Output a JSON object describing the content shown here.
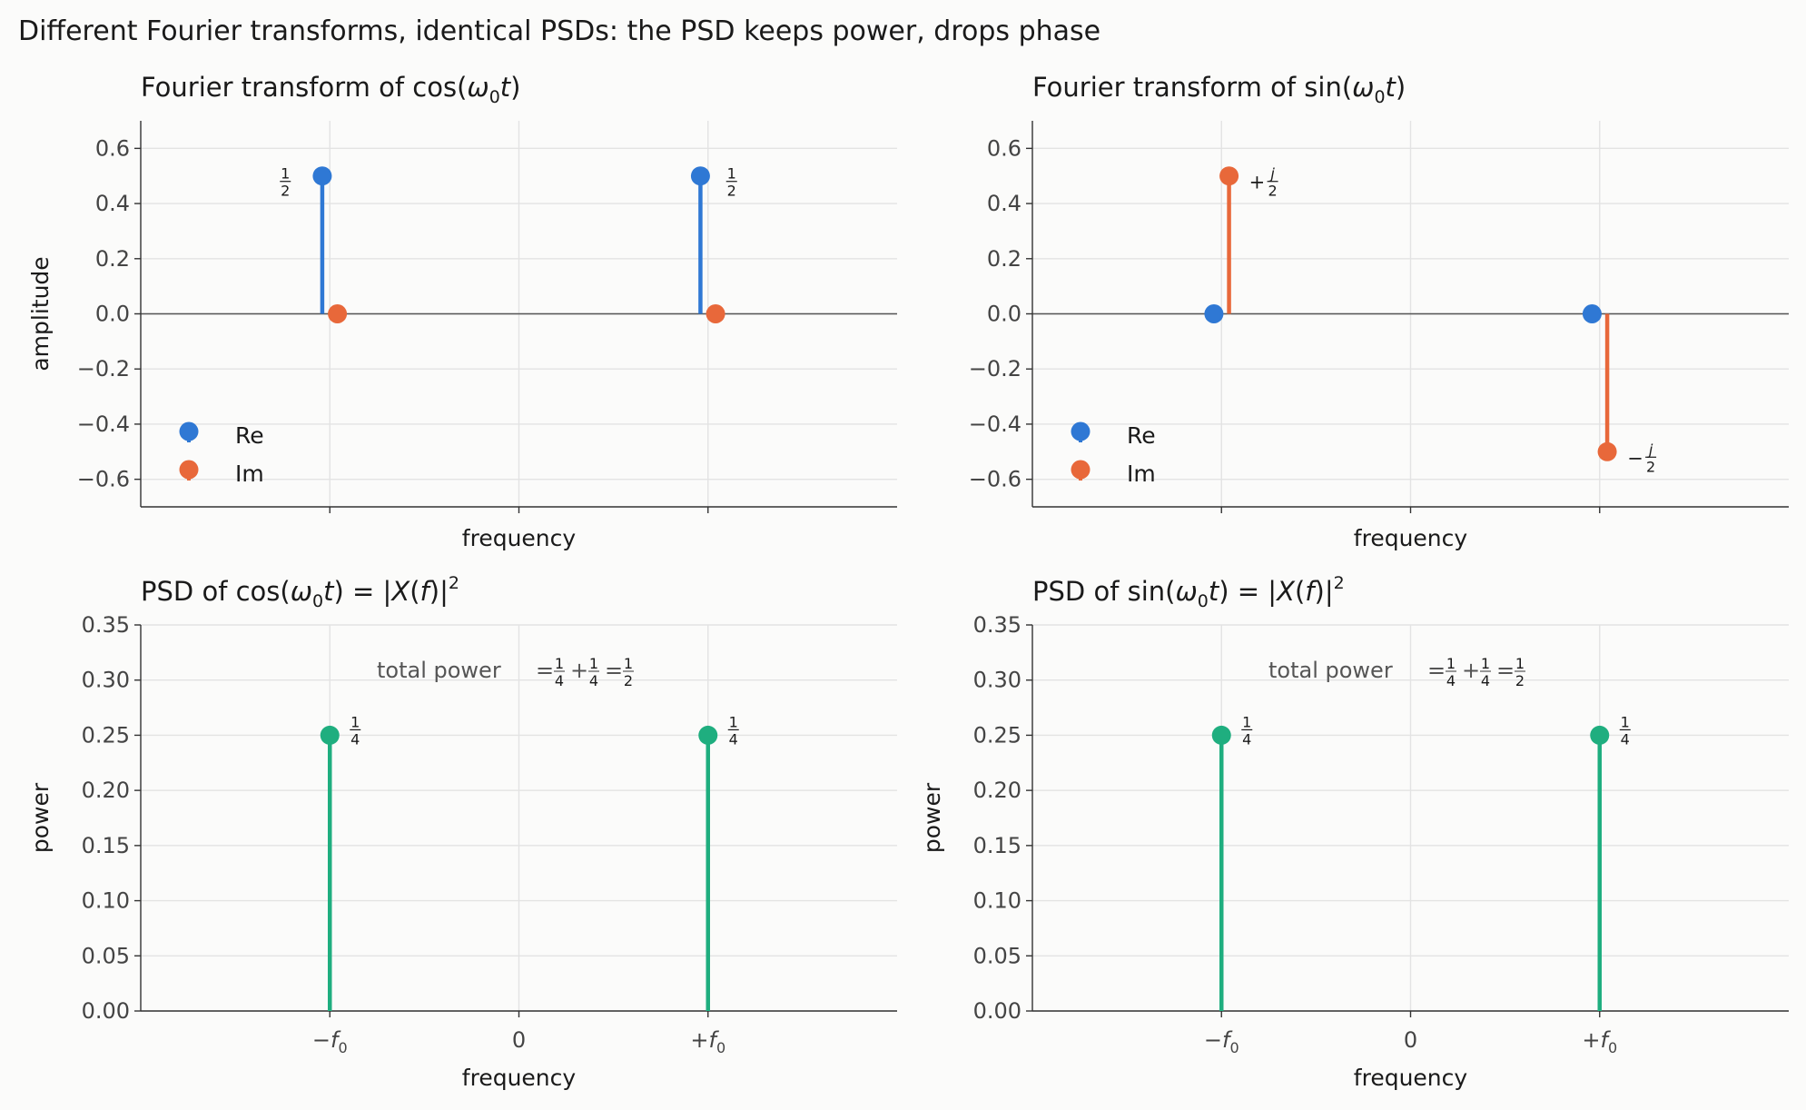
{
  "figure": {
    "suptitle": "Different Fourier transforms, identical PSDs: the PSD keeps power, drops phase"
  },
  "colors": {
    "re": "#2f78d4",
    "im": "#e8683a",
    "psd": "#1fae7f"
  },
  "chart_data": [
    {
      "id": "ft-cos",
      "type": "stem",
      "title_main": "Fourier transform of cos(",
      "title_var": "ω",
      "title_sub": "0",
      "title_tail": "t)",
      "xlabel": "frequency",
      "ylabel": "amplitude",
      "ylim": [
        -0.7,
        0.7
      ],
      "yticks": [
        -0.6,
        -0.4,
        -0.2,
        0.0,
        0.2,
        0.4,
        0.6
      ],
      "legend": [
        "Re",
        "Im"
      ],
      "legend_position": "lower-left",
      "series": [
        {
          "name": "Re",
          "x": [
            -1,
            1
          ],
          "values": [
            0.5,
            0.5
          ]
        },
        {
          "name": "Im",
          "x": [
            -1,
            1
          ],
          "values": [
            0.0,
            0.0
          ]
        }
      ],
      "point_labels": [
        {
          "x": -1,
          "num": "1",
          "den": "2",
          "side": "left"
        },
        {
          "x": 1,
          "num": "1",
          "den": "2",
          "side": "right"
        }
      ]
    },
    {
      "id": "ft-sin",
      "type": "stem",
      "title_main": "Fourier transform of sin(",
      "title_var": "ω",
      "title_sub": "0",
      "title_tail": "t)",
      "xlabel": "frequency",
      "ylabel": "",
      "ylim": [
        -0.7,
        0.7
      ],
      "yticks": [
        -0.6,
        -0.4,
        -0.2,
        0.0,
        0.2,
        0.4,
        0.6
      ],
      "legend": [
        "Re",
        "Im"
      ],
      "legend_position": "lower-left",
      "series": [
        {
          "name": "Re",
          "x": [
            -1,
            1
          ],
          "values": [
            0.0,
            0.0
          ]
        },
        {
          "name": "Im",
          "x": [
            -1,
            1
          ],
          "values": [
            0.5,
            -0.5
          ]
        }
      ],
      "point_labels": [
        {
          "x": -1,
          "sign": "+",
          "num": "j",
          "den": "2",
          "side": "right",
          "value": 0.5
        },
        {
          "x": 1,
          "sign": "−",
          "num": "j",
          "den": "2",
          "side": "right",
          "value": -0.5
        }
      ]
    },
    {
      "id": "psd-cos",
      "type": "stem",
      "title_main": "PSD of cos(",
      "title_var": "ω",
      "title_sub": "0",
      "title_tail": "t) = |X(f)|",
      "title_sup": "2",
      "xlabel": "frequency",
      "ylabel": "power",
      "ylim": [
        0,
        0.35
      ],
      "yticks": [
        0.0,
        0.05,
        0.1,
        0.15,
        0.2,
        0.25,
        0.3,
        0.35
      ],
      "xtick_labels": [
        "−f0",
        "0",
        "+f0"
      ],
      "series": [
        {
          "name": "PSD",
          "x": [
            -1,
            1
          ],
          "values": [
            0.25,
            0.25
          ]
        }
      ],
      "point_labels": [
        {
          "x": -1,
          "num": "1",
          "den": "4",
          "side": "right"
        },
        {
          "x": 1,
          "num": "1",
          "den": "4",
          "side": "right"
        }
      ],
      "note": "total power = 1/4 + 1/4 = 1/2"
    },
    {
      "id": "psd-sin",
      "type": "stem",
      "title_main": "PSD of sin(",
      "title_var": "ω",
      "title_sub": "0",
      "title_tail": "t) = |X(f)|",
      "title_sup": "2",
      "xlabel": "frequency",
      "ylabel": "power",
      "ylim": [
        0,
        0.35
      ],
      "yticks": [
        0.0,
        0.05,
        0.1,
        0.15,
        0.2,
        0.25,
        0.3,
        0.35
      ],
      "xtick_labels": [
        "−f0",
        "0",
        "+f0"
      ],
      "series": [
        {
          "name": "PSD",
          "x": [
            -1,
            1
          ],
          "values": [
            0.25,
            0.25
          ]
        }
      ],
      "point_labels": [
        {
          "x": -1,
          "num": "1",
          "den": "4",
          "side": "right"
        },
        {
          "x": 1,
          "num": "1",
          "den": "4",
          "side": "right"
        }
      ],
      "note": "total power = 1/4 + 1/4 = 1/2"
    }
  ]
}
